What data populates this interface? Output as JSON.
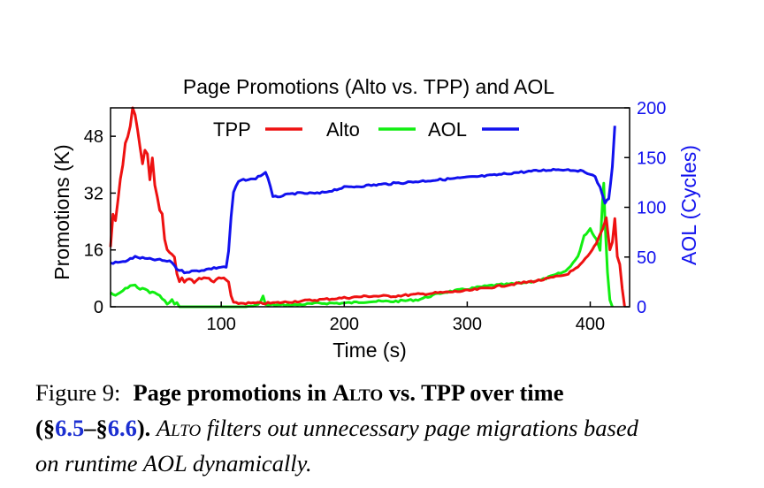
{
  "chart_data": {
    "type": "line",
    "title": "Page Promotions (Alto vs. TPP) and AOL",
    "xlabel": "Time (s)",
    "ylabel_left": "Promotions (K)",
    "ylabel_right": "AOL (Cycles)",
    "xlim": [
      10,
      432
    ],
    "ylim_left": [
      0,
      56
    ],
    "ylim_right": [
      0,
      200
    ],
    "xticks": [
      100,
      200,
      300,
      400
    ],
    "yticks_left": [
      0,
      16,
      32,
      48
    ],
    "yticks_right": [
      0,
      50,
      100,
      150,
      200
    ],
    "grid": false,
    "legend_position": "top-center",
    "series": [
      {
        "name": "TPP",
        "axis": "left",
        "color": "#ee1111",
        "x": [
          10,
          12,
          14,
          16,
          18,
          20,
          22,
          24,
          26,
          28,
          30,
          32,
          34,
          36,
          38,
          40,
          42,
          44,
          46,
          48,
          50,
          52,
          54,
          56,
          58,
          60,
          62,
          64,
          66,
          68,
          70,
          74,
          78,
          82,
          86,
          90,
          94,
          98,
          102,
          106,
          108,
          110,
          120,
          140,
          160,
          180,
          200,
          220,
          240,
          260,
          280,
          300,
          320,
          340,
          360,
          380,
          390,
          400,
          405,
          410,
          413,
          416,
          418,
          420,
          422,
          424,
          426,
          428
        ],
        "values": [
          17,
          26,
          24,
          30,
          36,
          40,
          46,
          48,
          51,
          56,
          54,
          50,
          45,
          40,
          44,
          43,
          36,
          42,
          34,
          31,
          27,
          26,
          19,
          16,
          15,
          15,
          14,
          9,
          7,
          8,
          7,
          8,
          7,
          8,
          8,
          8,
          7,
          8,
          8,
          7,
          3,
          1,
          1,
          1,
          1.5,
          2,
          2.5,
          3,
          3,
          3.5,
          4,
          4.5,
          5.5,
          6.5,
          7.5,
          9,
          11,
          15,
          18,
          22,
          25,
          16,
          18,
          25,
          14,
          12,
          5,
          0
        ]
      },
      {
        "name": "Alto",
        "axis": "left",
        "color": "#11ee11",
        "x": [
          10,
          14,
          18,
          22,
          26,
          30,
          34,
          38,
          42,
          46,
          50,
          52,
          54,
          56,
          58,
          60,
          62,
          64,
          66,
          70,
          80,
          100,
          120,
          130,
          134,
          136,
          140,
          160,
          180,
          200,
          220,
          240,
          260,
          280,
          300,
          320,
          340,
          360,
          380,
          390,
          395,
          400,
          405,
          408,
          410,
          411,
          412,
          414,
          416,
          418
        ],
        "values": [
          4,
          3,
          4,
          5,
          6,
          6,
          5,
          5,
          4,
          4,
          3,
          2,
          2,
          1,
          1,
          2,
          1,
          1,
          0,
          0,
          0,
          0,
          0,
          0.5,
          3,
          0.5,
          0.5,
          0.5,
          1,
          1,
          1.5,
          1.5,
          2,
          4,
          5,
          6,
          6.5,
          7.5,
          10,
          14,
          20,
          22,
          19,
          16,
          30,
          35,
          24,
          10,
          2,
          0
        ]
      },
      {
        "name": "AOL",
        "axis": "right",
        "color": "#1111ee",
        "x": [
          10,
          20,
          30,
          40,
          50,
          60,
          64,
          70,
          80,
          90,
          100,
          104,
          106,
          108,
          110,
          114,
          120,
          126,
          132,
          136,
          138,
          140,
          142,
          160,
          180,
          200,
          220,
          240,
          260,
          280,
          300,
          320,
          340,
          360,
          370,
          380,
          390,
          400,
          404,
          408,
          412,
          415,
          418,
          420
        ],
        "values": [
          44,
          45,
          50,
          48,
          47,
          45,
          38,
          35,
          36,
          38,
          40,
          40,
          55,
          90,
          115,
          126,
          128,
          128,
          132,
          135,
          130,
          120,
          110,
          114,
          114,
          120,
          122,
          124,
          126,
          128,
          130,
          132,
          135,
          137,
          138,
          138,
          137,
          134,
          130,
          120,
          105,
          108,
          140,
          182
        ]
      }
    ]
  },
  "caption": {
    "figure_label": "Figure 9:",
    "bold_a": "Page promotions in ",
    "alto_sc": "Alto",
    "bold_b": " vs. TPP over time",
    "open": "(§",
    "ref1": "6.5",
    "dash": "–§",
    "ref2": "6.6",
    "close": ").",
    "italic_sc": "Alto",
    "italic_text_1": " filters out unnecessary page migrations based",
    "italic_text_2": "on runtime AOL dynamically."
  }
}
